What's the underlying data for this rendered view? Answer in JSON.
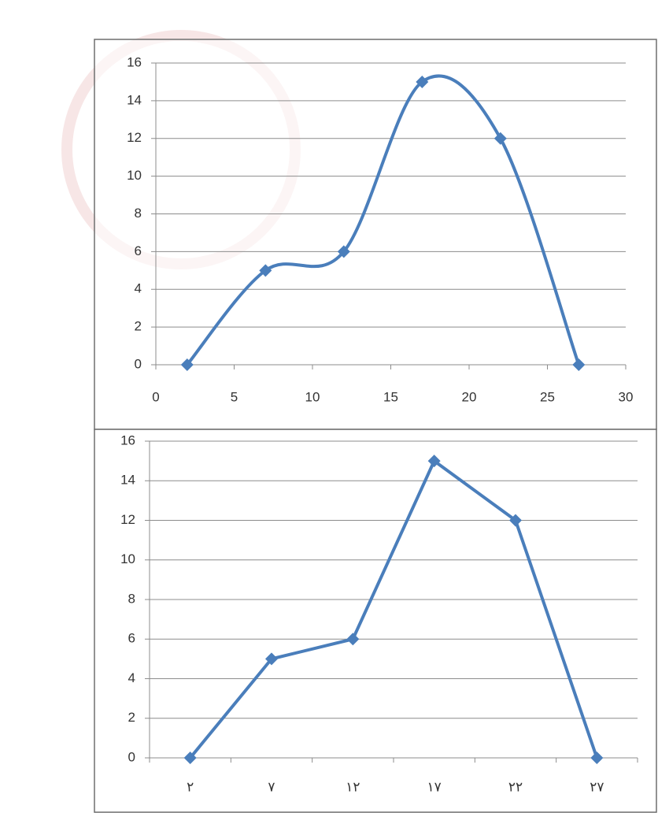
{
  "chart_data": [
    {
      "type": "scatter",
      "smooth": true,
      "x": [
        2,
        7,
        12,
        17,
        22,
        27
      ],
      "series": [
        {
          "color": "#4a7ebb",
          "values": [
            0,
            5,
            6,
            15,
            12,
            0
          ]
        }
      ],
      "xlim": [
        0,
        30
      ],
      "xticks": [
        0,
        5,
        10,
        15,
        20,
        25,
        30
      ],
      "ylim": [
        0,
        16
      ],
      "yticks": [
        0,
        2,
        4,
        6,
        8,
        10,
        12,
        14,
        16
      ],
      "grid": true
    },
    {
      "type": "line",
      "smooth": false,
      "categories": [
        "٢",
        "٧",
        "١٢",
        "١٧",
        "٢٢",
        "٢٧"
      ],
      "series": [
        {
          "color": "#4a7ebb",
          "values": [
            0,
            5,
            6,
            15,
            12,
            0
          ]
        }
      ],
      "ylim": [
        0,
        16
      ],
      "yticks": [
        0,
        2,
        4,
        6,
        8,
        10,
        12,
        14,
        16
      ],
      "grid": true
    }
  ]
}
